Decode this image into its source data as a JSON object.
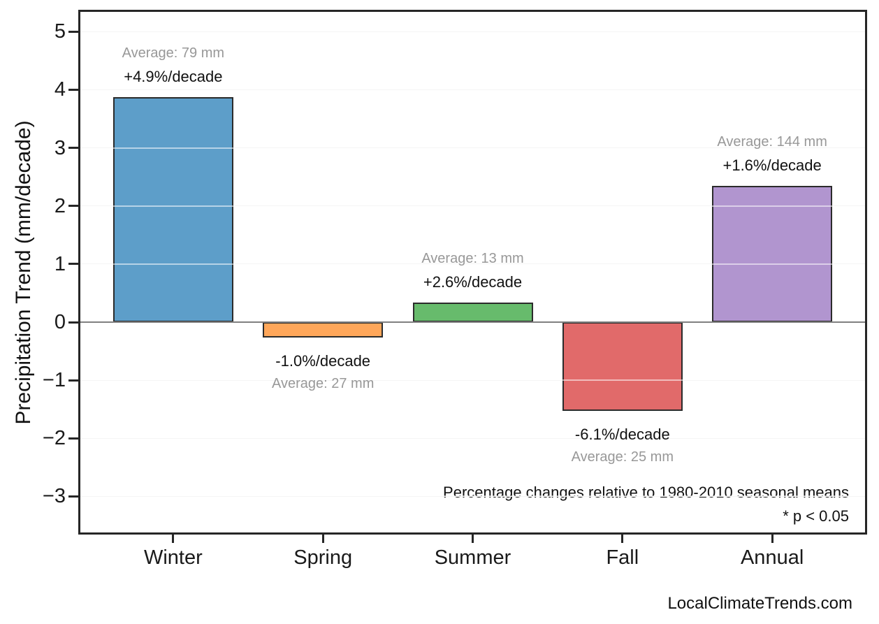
{
  "watermark": "LocalClimateTrends.com",
  "colors": {
    "axis": "#262626",
    "grid": "#e9e9e9",
    "zero_line": "#808080",
    "muted_text": "#989898",
    "bar_edge": "#2b2b2b"
  },
  "chart_data": {
    "type": "bar",
    "title": "",
    "xlabel": "",
    "ylabel": "Precipitation Trend (mm/decade)",
    "categories": [
      "Winter",
      "Spring",
      "Summer",
      "Fall",
      "Annual"
    ],
    "values": [
      3.87,
      -0.27,
      0.34,
      -1.53,
      2.35
    ],
    "bar_colors": [
      "#5d9ec9",
      "#ffa75a",
      "#67bb6c",
      "#e16a6a",
      "#b195cf"
    ],
    "averages_mm": [
      79,
      27,
      13,
      25,
      144
    ],
    "trend_pct_per_decade": [
      4.9,
      -1.0,
      2.6,
      -6.1,
      1.6
    ],
    "annotations": [
      {
        "category": "Winter",
        "average_label": "Average: 79 mm",
        "trend_label": "+4.9%/decade"
      },
      {
        "category": "Spring",
        "average_label": "Average: 27 mm",
        "trend_label": "-1.0%/decade"
      },
      {
        "category": "Summer",
        "average_label": "Average: 13 mm",
        "trend_label": "+2.6%/decade"
      },
      {
        "category": "Fall",
        "average_label": "Average: 25 mm",
        "trend_label": "-6.1%/decade"
      },
      {
        "category": "Annual",
        "average_label": "Average: 144 mm",
        "trend_label": "+1.6%/decade"
      }
    ],
    "yticks": [
      -3,
      -2,
      -1,
      0,
      1,
      2,
      3,
      4,
      5
    ],
    "ylim": [
      -3.62,
      5.34
    ],
    "grid": true,
    "legend": "none",
    "note": "Percentage changes relative to 1980-2010 seasonal means",
    "significance_note": "* p < 0.05"
  }
}
